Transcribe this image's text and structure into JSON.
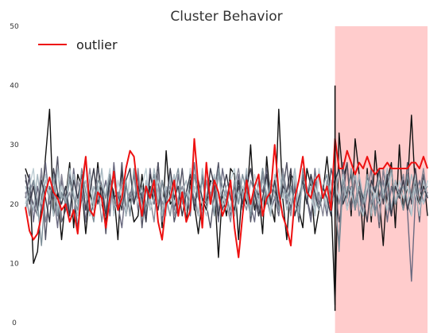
{
  "chart_data": {
    "type": "line",
    "title": "Cluster Behavior",
    "xlabel": "",
    "ylabel": "",
    "ylim": [
      0,
      50
    ],
    "yticks": [
      "0",
      "10",
      "20",
      "30",
      "40",
      "50"
    ],
    "grid": false,
    "legend": {
      "position": "top-left",
      "entries": [
        "outlier"
      ]
    },
    "highlight": {
      "x_start": 77,
      "x_end": 100,
      "color": "#ffcccc"
    },
    "vertical_marker": {
      "x": 77,
      "y_from": 2,
      "y_to": 40,
      "color": "#111111"
    },
    "x": [
      0,
      1,
      2,
      3,
      4,
      5,
      6,
      7,
      8,
      9,
      10,
      11,
      12,
      13,
      14,
      15,
      16,
      17,
      18,
      19,
      20,
      21,
      22,
      23,
      24,
      25,
      26,
      27,
      28,
      29,
      30,
      31,
      32,
      33,
      34,
      35,
      36,
      37,
      38,
      39,
      40,
      41,
      42,
      43,
      44,
      45,
      46,
      47,
      48,
      49,
      50,
      51,
      52,
      53,
      54,
      55,
      56,
      57,
      58,
      59,
      60,
      61,
      62,
      63,
      64,
      65,
      66,
      67,
      68,
      69,
      70,
      71,
      72,
      73,
      74,
      75,
      76,
      77,
      78,
      79,
      80,
      81,
      82,
      83,
      84,
      85,
      86,
      87,
      88,
      89,
      90,
      91,
      92,
      93,
      94,
      95,
      96,
      97,
      98,
      99,
      100
    ],
    "series": [
      {
        "name": "outlier",
        "color": "#ee1111",
        "highlight": true,
        "values": [
          19.5,
          15.5,
          14,
          15,
          18,
          22,
          24.5,
          22,
          21,
          19,
          20,
          17,
          19,
          15,
          23,
          28,
          19,
          18,
          22,
          21,
          16,
          21,
          25.5,
          19,
          21,
          26,
          29,
          28,
          22,
          18,
          23,
          21,
          24,
          17,
          14,
          20,
          21,
          24,
          18,
          22,
          17,
          19,
          31,
          23,
          16,
          27,
          20,
          24,
          22,
          18,
          20,
          24,
          16,
          11,
          18,
          24,
          20,
          23,
          25,
          18,
          21,
          22,
          30,
          22,
          18,
          16,
          13,
          21,
          24,
          28,
          22,
          21,
          24,
          25,
          21,
          23,
          19,
          31,
          26,
          26,
          29,
          27,
          25,
          27,
          26,
          28,
          26,
          25,
          26,
          26,
          27,
          26,
          26,
          26,
          26,
          26,
          27,
          27,
          26,
          28,
          26
        ]
      },
      {
        "name": "",
        "color": "#111111",
        "values": [
          26,
          24,
          10,
          12,
          20,
          28,
          36,
          18,
          22,
          14,
          21,
          27,
          16,
          25,
          23,
          15,
          22,
          19,
          27,
          20,
          17,
          24,
          22,
          14,
          26,
          19,
          21,
          17,
          18,
          25,
          19,
          23,
          20,
          27,
          16,
          29,
          20,
          21,
          18,
          22,
          17,
          24,
          20,
          15,
          21,
          19,
          24,
          23,
          11,
          22,
          18,
          26,
          25,
          14,
          23,
          20,
          30,
          19,
          22,
          15,
          28,
          20,
          17,
          36,
          21,
          14,
          25,
          24,
          19,
          16,
          26,
          23,
          15,
          19,
          22,
          28,
          21,
          3,
          32,
          24,
          27,
          18,
          31,
          25,
          14,
          26,
          17,
          29,
          21,
          13,
          24,
          27,
          16,
          30,
          19,
          23,
          35,
          22,
          20,
          25,
          18
        ]
      },
      {
        "name": "",
        "color": "#555566",
        "values": [
          24,
          22,
          20,
          18,
          26,
          14,
          23,
          21,
          28,
          17,
          19,
          25,
          22,
          16,
          21,
          28,
          18,
          20,
          26,
          23,
          15,
          24,
          21,
          19,
          27,
          18,
          22,
          20,
          25,
          16,
          23,
          19,
          21,
          27,
          18,
          22,
          24,
          17,
          20,
          26,
          19,
          23,
          21,
          18,
          25,
          20,
          16,
          22,
          27,
          19,
          21,
          24,
          18,
          23,
          20,
          25,
          17,
          22,
          19,
          26,
          21,
          18,
          24,
          20,
          22,
          27,
          19,
          23,
          17,
          25,
          21,
          18,
          24,
          20,
          22,
          19,
          26,
          23,
          17,
          21,
          27,
          19,
          24,
          22,
          18,
          25,
          20,
          23,
          16,
          26,
          21,
          18,
          24,
          22,
          19,
          27,
          20,
          23,
          17,
          25,
          21
        ]
      },
      {
        "name": "",
        "color": "#6a6a80",
        "values": [
          21,
          25,
          17,
          23,
          19,
          27,
          20,
          22,
          16,
          24,
          21,
          18,
          26,
          20,
          23,
          17,
          25,
          19,
          22,
          21,
          24,
          18,
          27,
          20,
          16,
          23,
          21,
          25,
          19,
          22,
          18,
          26,
          20,
          24,
          17,
          21,
          23,
          19,
          25,
          20,
          22,
          18,
          27,
          21,
          19,
          24,
          20,
          23,
          17,
          26,
          22,
          18,
          21,
          25,
          19,
          23,
          20,
          17,
          24,
          22,
          26,
          19,
          21,
          18,
          25,
          20,
          23,
          22,
          19,
          24,
          21,
          17,
          26,
          20,
          22,
          18,
          24,
          21,
          13,
          27,
          19,
          23,
          20,
          25,
          18,
          22,
          26,
          19,
          21,
          24,
          17,
          23,
          20,
          22,
          25,
          19,
          7,
          21,
          24,
          20,
          22
        ]
      },
      {
        "name": "",
        "color": "#8a8a99",
        "values": [
          22,
          18,
          24,
          20,
          26,
          17,
          21,
          23,
          19,
          25,
          20,
          22,
          18,
          24,
          21,
          19,
          26,
          20,
          23,
          17,
          22,
          25,
          19,
          21,
          24,
          18,
          22,
          20,
          26,
          19,
          23,
          21,
          17,
          25,
          20,
          22,
          24,
          18,
          21,
          23,
          19,
          26,
          20,
          22,
          18,
          24,
          21,
          25,
          19,
          22,
          20,
          17,
          23,
          26,
          21,
          19,
          24,
          22,
          18,
          25,
          20,
          23,
          21,
          19,
          26,
          22,
          18,
          24,
          20,
          23,
          21,
          25,
          19,
          22,
          18,
          24,
          21,
          26,
          20,
          23,
          19,
          22,
          25,
          18,
          21,
          24,
          20,
          23,
          17,
          26,
          22,
          19,
          24,
          21,
          25,
          20,
          18,
          23,
          22,
          26,
          21
        ]
      },
      {
        "name": "",
        "color": "#a8b8c0",
        "values": [
          23,
          21,
          19,
          25,
          20,
          24,
          22,
          18,
          26,
          21,
          23,
          19,
          25,
          20,
          22,
          24,
          18,
          23,
          21,
          26,
          19,
          22,
          24,
          20,
          23,
          18,
          25,
          21,
          22,
          19,
          24,
          20,
          26,
          22,
          18,
          23,
          21,
          25,
          19,
          22,
          24,
          20,
          23,
          18,
          26,
          21,
          22,
          19,
          25,
          20,
          23,
          24,
          18,
          22,
          21,
          26,
          19,
          23,
          20,
          24,
          22,
          18,
          25,
          21,
          23,
          19,
          22,
          26,
          20,
          24,
          21,
          23,
          18,
          25,
          22,
          19,
          24,
          21,
          26,
          20,
          23,
          22,
          19,
          25,
          21,
          24,
          18,
          23,
          20,
          22,
          26,
          19,
          24,
          21,
          23,
          20,
          25,
          22,
          18,
          24,
          21
        ]
      },
      {
        "name": "",
        "color": "#bcccd2",
        "values": [
          20,
          23,
          26,
          18,
          22,
          25,
          21,
          24,
          19,
          23,
          20,
          26,
          22,
          18,
          24,
          21,
          25,
          19,
          23,
          20,
          22,
          26,
          18,
          24,
          21,
          19,
          25,
          22,
          20,
          23,
          26,
          19,
          21,
          24,
          22,
          18,
          25,
          20,
          23,
          21,
          19,
          26,
          22,
          24,
          20,
          18,
          23,
          25,
          21,
          22,
          19,
          24,
          26,
          20,
          23,
          21,
          18,
          25,
          22,
          20,
          24,
          19,
          23,
          26,
          21,
          22,
          20,
          25,
          18,
          24,
          23,
          21,
          19,
          26,
          22,
          20,
          24,
          23,
          21,
          25,
          19,
          22,
          26,
          20,
          18,
          24,
          23,
          21,
          25,
          22,
          19,
          26,
          20,
          24,
          21,
          23,
          18,
          25,
          22,
          20,
          24
        ]
      },
      {
        "name": "",
        "color": "#3a3a48",
        "values": [
          25,
          20,
          23,
          19,
          24,
          21,
          17,
          26,
          22,
          20,
          23,
          18,
          24,
          21,
          25,
          19,
          22,
          26,
          20,
          23,
          18,
          25,
          21,
          22,
          19,
          24,
          26,
          20,
          23,
          21,
          17,
          25,
          22,
          19,
          24,
          20,
          26,
          21,
          23,
          18,
          22,
          25,
          19,
          24,
          21,
          20,
          26,
          23,
          18,
          22,
          25,
          21,
          19,
          24,
          20,
          23,
          26,
          22,
          18,
          21,
          25,
          20,
          24,
          19,
          23,
          22,
          26,
          18,
          21,
          24,
          20,
          25,
          22,
          19,
          23,
          21,
          18,
          24,
          26,
          20,
          22,
          25,
          19,
          23,
          21,
          17,
          24,
          22,
          26,
          20,
          25,
          18,
          23,
          21,
          24,
          19,
          22,
          26,
          20,
          23,
          21
        ]
      },
      {
        "name": "",
        "color": "#7f8f99",
        "values": [
          19,
          22,
          24,
          20,
          13,
          23,
          21,
          25,
          18,
          22,
          20,
          24,
          21,
          19,
          26,
          22,
          20,
          17,
          24,
          23,
          21,
          25,
          19,
          22,
          20,
          24,
          18,
          26,
          21,
          23,
          19,
          22,
          25,
          20,
          24,
          21,
          18,
          23,
          26,
          20,
          22,
          19,
          25,
          21,
          24,
          20,
          22,
          18,
          26,
          23,
          21,
          19,
          24,
          20,
          25,
          22,
          18,
          23,
          21,
          26,
          20,
          24,
          22,
          19,
          25,
          21,
          23,
          20,
          18,
          26,
          22,
          24,
          21,
          19,
          23,
          25,
          20,
          22,
          12,
          24,
          21,
          26,
          19,
          23,
          20,
          25,
          22,
          18,
          24,
          21,
          23,
          26,
          20,
          22,
          19,
          25,
          21,
          24,
          20,
          22,
          23
        ]
      }
    ]
  }
}
